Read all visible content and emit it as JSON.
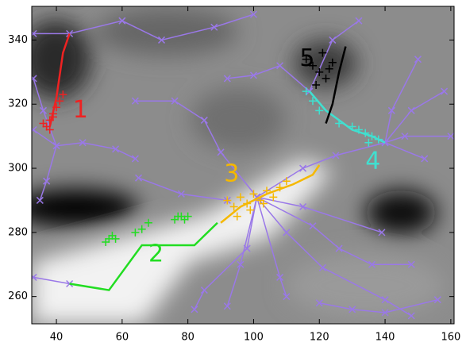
{
  "chart_data": {
    "type": "scatter",
    "xlim": [
      32.5,
      161
    ],
    "ylim": [
      251.5,
      350.5
    ],
    "xticks": [
      40,
      60,
      80,
      100,
      120,
      140,
      160
    ],
    "yticks": [
      260,
      280,
      300,
      320,
      340
    ],
    "series": [
      {
        "mode": "lines+cross",
        "color": "#9a78e8",
        "x": [
          33,
          44,
          60,
          72,
          88,
          100
        ],
        "y": [
          342,
          342,
          346,
          340,
          344,
          348
        ]
      },
      {
        "mode": "lines+cross",
        "color": "#9a78e8",
        "x": [
          33,
          40,
          48,
          58,
          64
        ],
        "y": [
          312,
          307,
          308,
          306,
          303
        ]
      },
      {
        "mode": "lines+cross",
        "color": "#9a78e8",
        "x": [
          33,
          36,
          40,
          37,
          35
        ],
        "y": [
          328,
          318,
          307,
          296,
          290
        ]
      },
      {
        "mode": "lines+cross",
        "color": "#9a78e8",
        "x": [
          33,
          44
        ],
        "y": [
          266,
          264
        ]
      },
      {
        "mode": "lines+cross",
        "color": "#9a78e8",
        "x": [
          101,
          90,
          85,
          76,
          64
        ],
        "y": [
          291,
          305,
          315,
          321,
          321
        ]
      },
      {
        "mode": "lines+cross",
        "color": "#9a78e8",
        "x": [
          101,
          110,
          121,
          140,
          148
        ],
        "y": [
          291,
          280,
          269,
          259,
          254
        ]
      },
      {
        "mode": "lines+cross",
        "color": "#9a78e8",
        "x": [
          101,
          115,
          139
        ],
        "y": [
          291,
          288,
          280
        ]
      },
      {
        "mode": "lines+cross",
        "color": "#9a78e8",
        "x": [
          101,
          96,
          92
        ],
        "y": [
          291,
          270,
          257
        ]
      },
      {
        "mode": "lines+cross",
        "color": "#9a78e8",
        "x": [
          101,
          98,
          85,
          82
        ],
        "y": [
          291,
          275,
          262,
          256
        ]
      },
      {
        "mode": "lines+cross",
        "color": "#9a78e8",
        "x": [
          101,
          108,
          110
        ],
        "y": [
          291,
          266,
          260
        ]
      },
      {
        "mode": "lines+cross",
        "color": "#9a78e8",
        "x": [
          101,
          118,
          126,
          136,
          148
        ],
        "y": [
          291,
          282,
          275,
          270,
          270
        ]
      },
      {
        "mode": "lines+cross",
        "color": "#9a78e8",
        "x": [
          101,
          115,
          125,
          140,
          152
        ],
        "y": [
          291,
          300,
          304,
          308,
          303
        ]
      },
      {
        "mode": "lines+cross",
        "color": "#9a78e8",
        "x": [
          140,
          148,
          158
        ],
        "y": [
          308,
          318,
          324
        ]
      },
      {
        "mode": "lines+cross",
        "color": "#9a78e8",
        "x": [
          140,
          146,
          160
        ],
        "y": [
          308,
          310,
          310
        ]
      },
      {
        "mode": "lines+cross",
        "color": "#9a78e8",
        "x": [
          117,
          108,
          100,
          92
        ],
        "y": [
          324,
          332,
          329,
          328
        ]
      },
      {
        "mode": "lines+cross",
        "color": "#9a78e8",
        "x": [
          117,
          124,
          132
        ],
        "y": [
          324,
          340,
          346
        ]
      },
      {
        "mode": "lines+cross",
        "color": "#9a78e8",
        "x": [
          140,
          142,
          150
        ],
        "y": [
          308,
          318,
          334
        ]
      },
      {
        "mode": "lines+cross",
        "color": "#9a78e8",
        "x": [
          65,
          78,
          92
        ],
        "y": [
          297,
          292,
          290
        ]
      },
      {
        "mode": "lines+cross",
        "color": "#9a78e8",
        "x": [
          120,
          130,
          140,
          156
        ],
        "y": [
          258,
          256,
          255,
          259
        ]
      },
      {
        "mode": "lines",
        "color": "#ee2222",
        "x": [
          38,
          40,
          42,
          44
        ],
        "y": [
          313,
          322,
          336,
          342
        ]
      },
      {
        "mode": "plus",
        "color": "#ee2222",
        "x": [
          37,
          38,
          39,
          40,
          41,
          42,
          38,
          39,
          36
        ],
        "y": [
          313,
          315,
          317,
          319,
          321,
          323,
          312,
          316,
          314
        ]
      },
      {
        "mode": "lines",
        "color": "#22dd22",
        "x": [
          44,
          56,
          66,
          82,
          89
        ],
        "y": [
          264,
          262,
          276,
          276,
          283
        ]
      },
      {
        "mode": "plus",
        "color": "#22dd22",
        "x": [
          55,
          56,
          57,
          58,
          64,
          66,
          68,
          76,
          77,
          78,
          79,
          80
        ],
        "y": [
          277,
          278,
          279,
          278,
          280,
          281,
          283,
          284,
          285,
          285,
          284,
          285
        ]
      },
      {
        "mode": "lines",
        "color": "#f5b800",
        "x": [
          90,
          96,
          104,
          112,
          118,
          120
        ],
        "y": [
          283,
          288,
          292,
          295,
          298,
          301
        ]
      },
      {
        "mode": "plus",
        "color": "#f5b800",
        "x": [
          92,
          94,
          96,
          98,
          100,
          102,
          104,
          106,
          108,
          110,
          95,
          99,
          103
        ],
        "y": [
          290,
          288,
          291,
          289,
          292,
          290,
          293,
          291,
          294,
          296,
          285,
          287,
          289
        ]
      },
      {
        "mode": "lines",
        "color": "#40e0d0",
        "x": [
          117,
          122,
          130,
          136,
          140
        ],
        "y": [
          324,
          318,
          312,
          310,
          308
        ]
      },
      {
        "mode": "plus",
        "color": "#40e0d0",
        "x": [
          116,
          118,
          120,
          126,
          130,
          132,
          134,
          136,
          138,
          135
        ],
        "y": [
          324,
          321,
          318,
          314,
          313,
          312,
          311,
          310,
          309,
          308
        ]
      },
      {
        "mode": "lines",
        "color": "#000000",
        "x": [
          128,
          126,
          124,
          122
        ],
        "y": [
          338,
          330,
          320,
          314
        ]
      },
      {
        "mode": "plus",
        "color": "#000000",
        "x": [
          116,
          118,
          120,
          122,
          124,
          121,
          119,
          123
        ],
        "y": [
          334,
          332,
          330,
          328,
          333,
          336,
          326,
          331
        ]
      }
    ],
    "annotations": [
      {
        "text": "1",
        "x": 45,
        "y": 318,
        "color": "#ee2222"
      },
      {
        "text": "2",
        "x": 68,
        "y": 273,
        "color": "#22dd22"
      },
      {
        "text": "3",
        "x": 91,
        "y": 298,
        "color": "#f5b800"
      },
      {
        "text": "4",
        "x": 134,
        "y": 302,
        "color": "#40e0d0"
      },
      {
        "text": "5",
        "x": 114,
        "y": 334,
        "color": "#000000"
      }
    ]
  }
}
